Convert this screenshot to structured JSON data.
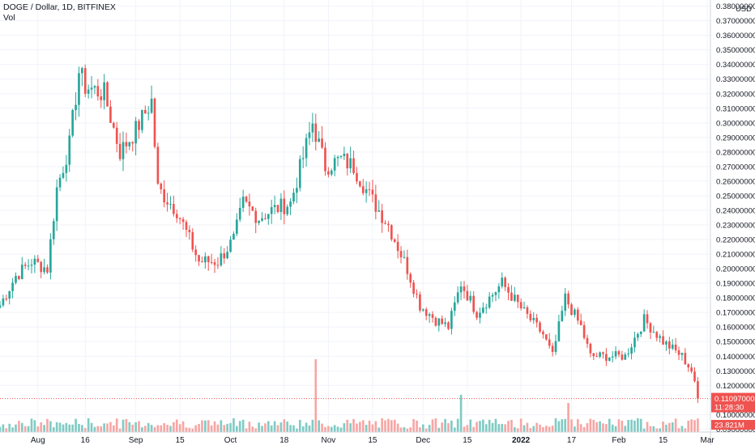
{
  "legend": {
    "symbol_line": "DOGE / Dollar, 1D, BITFINEX",
    "volume_label": "Vol"
  },
  "colors": {
    "up": "#26a69a",
    "down": "#ef5350",
    "up_volume": "#80cbc4",
    "down_volume": "#f7a6a4",
    "grid": "#f0f3fa",
    "axis_line": "#d1d4dc",
    "price_badge": "#ef5350",
    "volume_badge": "#ef5350",
    "price_line": "#ef5350"
  },
  "chart_data": {
    "type": "candlestick",
    "currency": "USD",
    "y_axis": {
      "ticks": [
        "0.38000000",
        "0.37000000",
        "0.36000000",
        "0.35000000",
        "0.34000000",
        "0.33000000",
        "0.32000000",
        "0.31000000",
        "0.30000000",
        "0.29000000",
        "0.28000000",
        "0.27000000",
        "0.26000000",
        "0.25000000",
        "0.24000000",
        "0.23000000",
        "0.22000000",
        "0.21000000",
        "0.20000000",
        "0.19000000",
        "0.18000000",
        "0.17000000",
        "0.16000000",
        "0.15000000",
        "0.14000000",
        "0.13000000",
        "0.12000000",
        "0.10000000",
        "0.09000000"
      ],
      "range": [
        0.088,
        0.382
      ]
    },
    "x_axis": {
      "ticks": [
        {
          "label": "Aug",
          "date": "2021-08-01"
        },
        {
          "label": "16",
          "date": "2021-08-16"
        },
        {
          "label": "Sep",
          "date": "2021-09-01"
        },
        {
          "label": "15",
          "date": "2021-09-15"
        },
        {
          "label": "Oct",
          "date": "2021-10-01"
        },
        {
          "label": "18",
          "date": "2021-10-18"
        },
        {
          "label": "Nov",
          "date": "2021-11-01"
        },
        {
          "label": "15",
          "date": "2021-11-15"
        },
        {
          "label": "Dec",
          "date": "2021-12-01"
        },
        {
          "label": "15",
          "date": "2021-12-15"
        },
        {
          "label": "2022",
          "date": "2022-01-01"
        },
        {
          "label": "17",
          "date": "2022-01-17"
        },
        {
          "label": "Feb",
          "date": "2022-02-01"
        },
        {
          "label": "15",
          "date": "2022-02-15"
        },
        {
          "label": "Mar",
          "date": "2022-03-01"
        }
      ],
      "range": [
        "2021-07-20",
        "2022-03-02"
      ]
    },
    "current_price": {
      "value": 0.11097,
      "label": "0.11097000",
      "countdown": "11:28:30"
    },
    "current_volume": {
      "label": "23.821M"
    },
    "key_points": [
      [
        "2021-07-20",
        0.175
      ],
      [
        "2021-07-25",
        0.195
      ],
      [
        "2021-07-30",
        0.205
      ],
      [
        "2021-08-04",
        0.2
      ],
      [
        "2021-08-07",
        0.255
      ],
      [
        "2021-08-11",
        0.285
      ],
      [
        "2021-08-14",
        0.335
      ],
      [
        "2021-08-16",
        0.325
      ],
      [
        "2021-08-22",
        0.32
      ],
      [
        "2021-08-27",
        0.28
      ],
      [
        "2021-09-01",
        0.295
      ],
      [
        "2021-09-06",
        0.315
      ],
      [
        "2021-09-08",
        0.255
      ],
      [
        "2021-09-14",
        0.24
      ],
      [
        "2021-09-21",
        0.205
      ],
      [
        "2021-09-27",
        0.205
      ],
      [
        "2021-10-02",
        0.22
      ],
      [
        "2021-10-05",
        0.245
      ],
      [
        "2021-10-10",
        0.235
      ],
      [
        "2021-10-14",
        0.24
      ],
      [
        "2021-10-20",
        0.245
      ],
      [
        "2021-10-27",
        0.3
      ],
      [
        "2021-10-31",
        0.27
      ],
      [
        "2021-11-05",
        0.275
      ],
      [
        "2021-11-09",
        0.27
      ],
      [
        "2021-11-14",
        0.25
      ],
      [
        "2021-11-20",
        0.23
      ],
      [
        "2021-11-26",
        0.2
      ],
      [
        "2021-11-30",
        0.175
      ],
      [
        "2021-12-05",
        0.165
      ],
      [
        "2021-12-09",
        0.16
      ],
      [
        "2021-12-13",
        0.19
      ],
      [
        "2021-12-18",
        0.17
      ],
      [
        "2021-12-26",
        0.19
      ],
      [
        "2022-01-02",
        0.17
      ],
      [
        "2022-01-08",
        0.155
      ],
      [
        "2022-01-11",
        0.14
      ],
      [
        "2022-01-15",
        0.18
      ],
      [
        "2022-01-20",
        0.16
      ],
      [
        "2022-01-23",
        0.14
      ],
      [
        "2022-02-03",
        0.14
      ],
      [
        "2022-02-09",
        0.165
      ],
      [
        "2022-02-15",
        0.15
      ],
      [
        "2022-02-21",
        0.14
      ],
      [
        "2022-02-24",
        0.13
      ],
      [
        "2022-02-26",
        0.111
      ]
    ],
    "notable_volume_spikes": [
      {
        "date": "2021-10-28",
        "volume_m": 125
      },
      {
        "date": "2021-12-13",
        "volume_m": 64
      },
      {
        "date": "2022-01-16",
        "volume_m": 50
      }
    ]
  }
}
